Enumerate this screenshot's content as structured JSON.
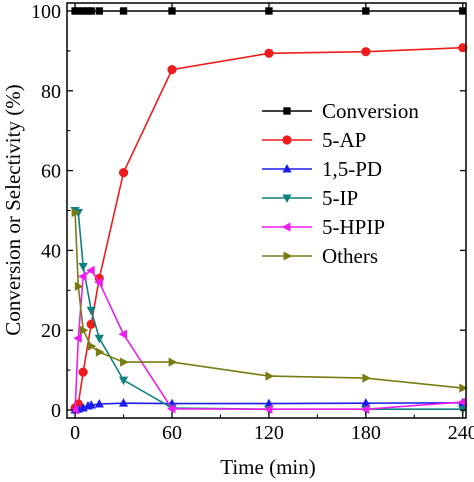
{
  "chart_data": {
    "type": "line",
    "xlabel": "Time (min)",
    "ylabel": "Conversion or Selectivity (%)",
    "xlim": [
      -5,
      242
    ],
    "ylim": [
      -2,
      102
    ],
    "x_ticks": [
      0,
      60,
      120,
      180,
      240
    ],
    "y_ticks": [
      0,
      20,
      40,
      60,
      80,
      100
    ],
    "grid": false,
    "legend_position": "center-right",
    "series": [
      {
        "name": "Conversion",
        "color": "#000000",
        "marker": "square",
        "points": [
          [
            0,
            100
          ],
          [
            2,
            100
          ],
          [
            5,
            100
          ],
          [
            8,
            100
          ],
          [
            10,
            100
          ],
          [
            15,
            100
          ],
          [
            30,
            100
          ],
          [
            60,
            100
          ],
          [
            120,
            100
          ],
          [
            180,
            100
          ],
          [
            240,
            100
          ]
        ]
      },
      {
        "name": "5-AP",
        "color": "#ee1c1c",
        "marker": "circle",
        "points": [
          [
            0,
            0.5
          ],
          [
            2,
            1.5
          ],
          [
            5,
            9.5
          ],
          [
            10,
            21.5
          ],
          [
            15,
            33
          ],
          [
            30,
            59.5
          ],
          [
            60,
            85.3
          ],
          [
            120,
            89.4
          ],
          [
            180,
            89.8
          ],
          [
            240,
            90.8
          ]
        ]
      },
      {
        "name": "1,5-PD",
        "color": "#1c1cee",
        "marker": "triangle-up",
        "points": [
          [
            0,
            0
          ],
          [
            2,
            0.2
          ],
          [
            5,
            0.5
          ],
          [
            8,
            1
          ],
          [
            10,
            1.2
          ],
          [
            15,
            1.5
          ],
          [
            30,
            1.7
          ],
          [
            60,
            1.6
          ],
          [
            120,
            1.6
          ],
          [
            180,
            1.7
          ],
          [
            240,
            1.8
          ]
        ]
      },
      {
        "name": "5-IP",
        "color": "#0f8080",
        "marker": "triangle-down",
        "points": [
          [
            0,
            50
          ],
          [
            2,
            49.5
          ],
          [
            5,
            36
          ],
          [
            10,
            25
          ],
          [
            15,
            18
          ],
          [
            30,
            7.5
          ],
          [
            60,
            0.5
          ],
          [
            120,
            0.2
          ],
          [
            180,
            0.2
          ],
          [
            240,
            0.2
          ]
        ]
      },
      {
        "name": "5-HPIP",
        "color": "#ee1cee",
        "marker": "triangle-left",
        "points": [
          [
            0,
            0
          ],
          [
            2,
            18
          ],
          [
            5,
            33.5
          ],
          [
            10,
            35
          ],
          [
            15,
            32
          ],
          [
            30,
            19
          ],
          [
            60,
            0.3
          ],
          [
            120,
            0.2
          ],
          [
            180,
            0.2
          ],
          [
            240,
            2
          ]
        ]
      },
      {
        "name": "Others",
        "color": "#7a7a12",
        "marker": "triangle-right",
        "points": [
          [
            0,
            49.5
          ],
          [
            2,
            31
          ],
          [
            5,
            20
          ],
          [
            10,
            16
          ],
          [
            15,
            14.5
          ],
          [
            30,
            12
          ],
          [
            60,
            12
          ],
          [
            120,
            8.5
          ],
          [
            180,
            8
          ],
          [
            240,
            5.5
          ]
        ]
      }
    ]
  }
}
